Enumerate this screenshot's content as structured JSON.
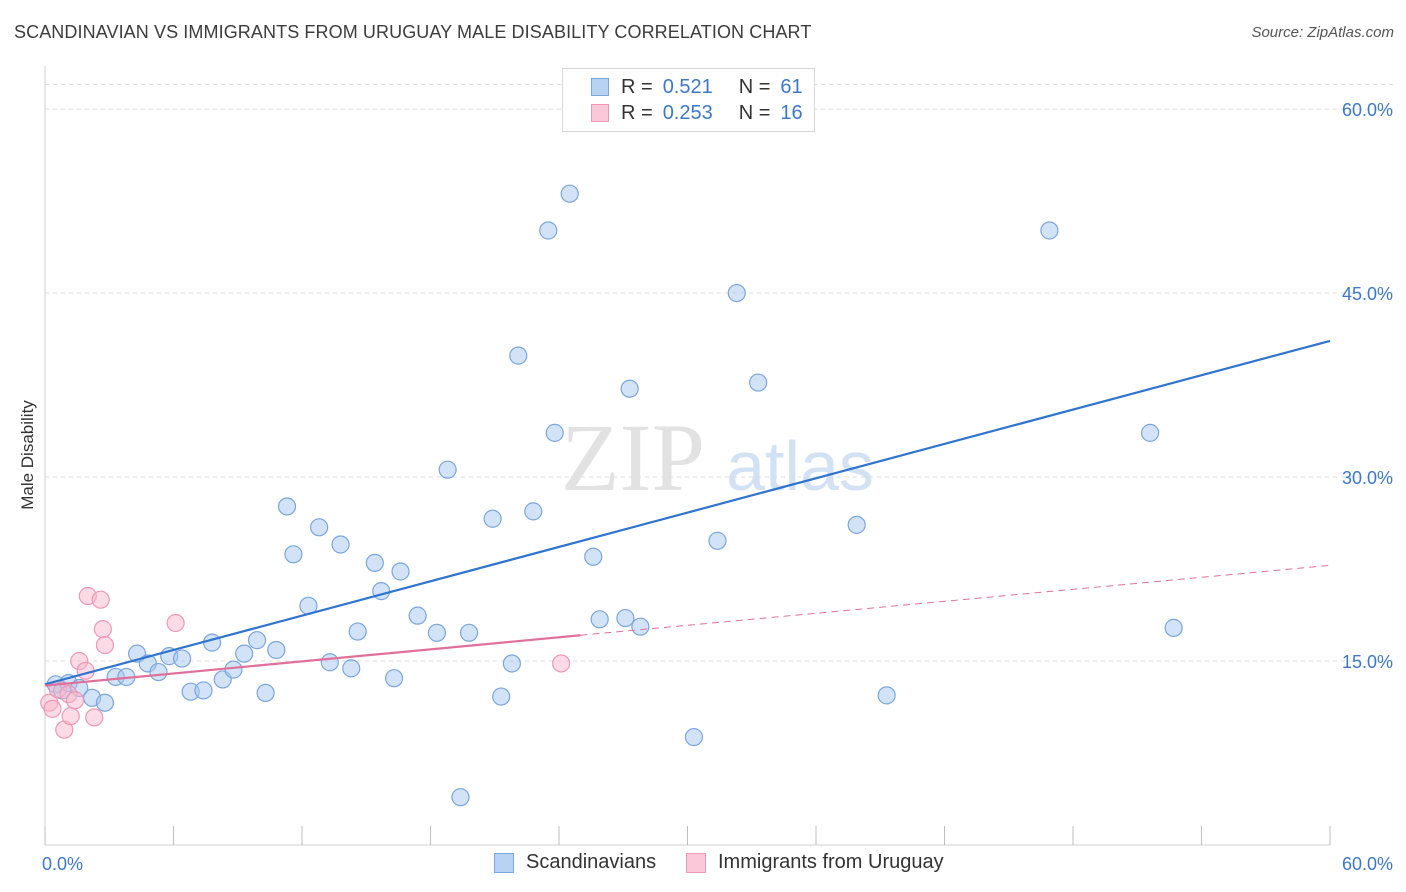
{
  "title": "SCANDINAVIAN VS IMMIGRANTS FROM URUGUAY MALE DISABILITY CORRELATION CHART",
  "source": "Source: ZipAtlas.com",
  "watermark": {
    "zip": "ZIP",
    "atlas": "atlas"
  },
  "colors": {
    "blue_fill": "#a8c8f0",
    "blue_stroke": "#7aa6dc",
    "blue_line": "#2f74d0",
    "pink_fill": "#f8b8cc",
    "pink_stroke": "#ee98b4",
    "pink_line": "#e0709a",
    "tick_label": "#3d78c8",
    "grid": "#dcdcdc"
  },
  "legend_top": [
    {
      "r_label": "R =",
      "r_value": "0.521",
      "n_label": "N =",
      "n_value": "61"
    },
    {
      "r_label": "R =",
      "r_value": "0.253",
      "n_label": "N =",
      "n_value": "16"
    }
  ],
  "legend_bottom": [
    "Scandinavians",
    "Immigrants from Uruguay"
  ],
  "chart_data": {
    "type": "scatter",
    "title": "SCANDINAVIAN VS IMMIGRANTS FROM URUGUAY MALE DISABILITY CORRELATION CHART",
    "xlabel": "",
    "ylabel": "Male Disability",
    "xlim": [
      0,
      60
    ],
    "ylim": [
      0,
      64
    ],
    "x_tick_labels": [
      "0.0%",
      "60.0%"
    ],
    "y_ticks": [
      15,
      30,
      45,
      60
    ],
    "y_tick_labels": [
      "15.0%",
      "30.0%",
      "45.0%",
      "60.0%"
    ],
    "grid": true,
    "legend_position": "top-center",
    "series": [
      {
        "name": "Scandinavians",
        "points": [
          [
            0.5,
            13.1
          ],
          [
            0.8,
            12.6
          ],
          [
            1.1,
            13.2
          ],
          [
            1.6,
            12.8
          ],
          [
            2.2,
            12.0
          ],
          [
            2.8,
            11.6
          ],
          [
            3.3,
            13.7
          ],
          [
            3.8,
            13.7
          ],
          [
            4.3,
            15.6
          ],
          [
            4.8,
            14.8
          ],
          [
            5.3,
            14.1
          ],
          [
            5.8,
            15.4
          ],
          [
            6.4,
            15.2
          ],
          [
            6.8,
            12.5
          ],
          [
            7.4,
            12.6
          ],
          [
            7.8,
            16.5
          ],
          [
            8.3,
            13.5
          ],
          [
            8.8,
            14.3
          ],
          [
            9.3,
            15.6
          ],
          [
            9.9,
            16.7
          ],
          [
            10.3,
            12.4
          ],
          [
            10.8,
            15.9
          ],
          [
            11.3,
            27.6
          ],
          [
            11.6,
            23.7
          ],
          [
            12.3,
            19.5
          ],
          [
            12.8,
            25.9
          ],
          [
            13.3,
            14.9
          ],
          [
            13.8,
            24.5
          ],
          [
            14.3,
            14.4
          ],
          [
            14.6,
            17.4
          ],
          [
            15.4,
            23.0
          ],
          [
            15.7,
            20.7
          ],
          [
            16.3,
            13.6
          ],
          [
            16.6,
            22.3
          ],
          [
            17.4,
            18.7
          ],
          [
            18.3,
            17.3
          ],
          [
            18.8,
            30.6
          ],
          [
            19.4,
            3.9
          ],
          [
            19.8,
            17.3
          ],
          [
            20.9,
            26.6
          ],
          [
            21.3,
            12.1
          ],
          [
            21.8,
            14.8
          ],
          [
            22.1,
            39.9
          ],
          [
            22.8,
            27.2
          ],
          [
            23.5,
            50.1
          ],
          [
            23.8,
            33.6
          ],
          [
            24.5,
            53.1
          ],
          [
            25.6,
            23.5
          ],
          [
            25.9,
            18.4
          ],
          [
            27.1,
            18.5
          ],
          [
            27.3,
            37.2
          ],
          [
            27.8,
            17.8
          ],
          [
            30.3,
            8.8
          ],
          [
            31.4,
            24.8
          ],
          [
            32.3,
            45.0
          ],
          [
            33.3,
            37.7
          ],
          [
            37.9,
            26.1
          ],
          [
            39.3,
            12.2
          ],
          [
            46.9,
            50.1
          ],
          [
            51.6,
            33.6
          ],
          [
            52.7,
            17.7
          ]
        ]
      },
      {
        "name": "Immigrants from Uruguay",
        "points": [
          [
            0.2,
            11.6
          ],
          [
            0.35,
            11.1
          ],
          [
            0.6,
            12.7
          ],
          [
            0.9,
            9.4
          ],
          [
            1.1,
            12.3
          ],
          [
            1.2,
            10.5
          ],
          [
            1.4,
            11.8
          ],
          [
            1.6,
            15.0
          ],
          [
            1.9,
            14.2
          ],
          [
            2.0,
            20.3
          ],
          [
            2.3,
            10.4
          ],
          [
            2.6,
            20.0
          ],
          [
            2.7,
            17.6
          ],
          [
            2.8,
            16.3
          ],
          [
            6.1,
            18.1
          ],
          [
            24.1,
            14.8
          ]
        ]
      }
    ],
    "trend_lines": [
      {
        "series": "Scandinavians",
        "x": [
          0,
          60
        ],
        "y": [
          13.1,
          41.1
        ],
        "style": "solid"
      },
      {
        "series": "Immigrants from Uruguay",
        "x": [
          0,
          25
        ],
        "y": [
          13.0,
          17.1
        ],
        "style": "solid"
      },
      {
        "series": "Immigrants from Uruguay",
        "x": [
          25,
          60
        ],
        "y": [
          17.1,
          22.8
        ],
        "style": "dashed"
      }
    ]
  }
}
